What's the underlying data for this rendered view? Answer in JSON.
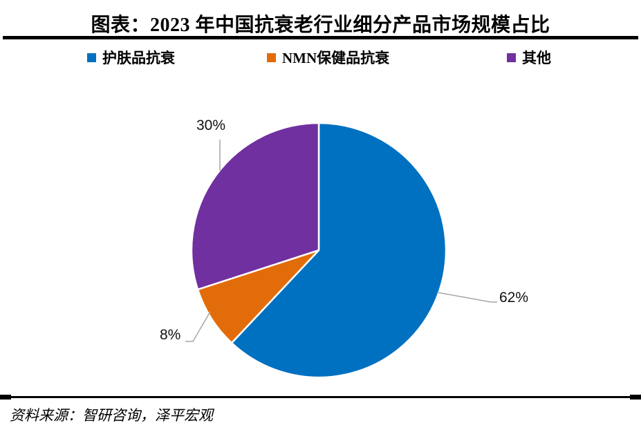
{
  "header": {
    "title": "图表：2023 年中国抗衰老行业细分产品市场规模占比"
  },
  "legend": {
    "position": "top",
    "items": [
      {
        "label": "护肤品抗衰",
        "color": "#0070C0"
      },
      {
        "label": "NMN保健品抗衰",
        "color": "#E36C0A"
      },
      {
        "label": "其他",
        "color": "#7030A0"
      }
    ]
  },
  "footer": {
    "source": "资料来源：智研咨询，泽平宏观"
  },
  "chart_data": {
    "type": "pie",
    "title": "图表：2023 年中国抗衰老行业细分产品市场规模占比",
    "categories": [
      "护肤品抗衰",
      "NMN保健品抗衰",
      "其他"
    ],
    "values": [
      62,
      8,
      30
    ],
    "unit": "%",
    "slices": [
      {
        "label": "护肤品抗衰",
        "value": 62,
        "display": "62%",
        "color": "#0070C0"
      },
      {
        "label": "NMN保健品抗衰",
        "value": 8,
        "display": "8%",
        "color": "#E36C0A"
      },
      {
        "label": "其他",
        "value": 30,
        "display": "30%",
        "color": "#7030A0"
      }
    ],
    "start_angle_deg": 0,
    "direction": "clockwise",
    "legend_position": "top",
    "slice_border_color": "#FFFFFF",
    "leader_line_color": "#A6A6A6"
  }
}
